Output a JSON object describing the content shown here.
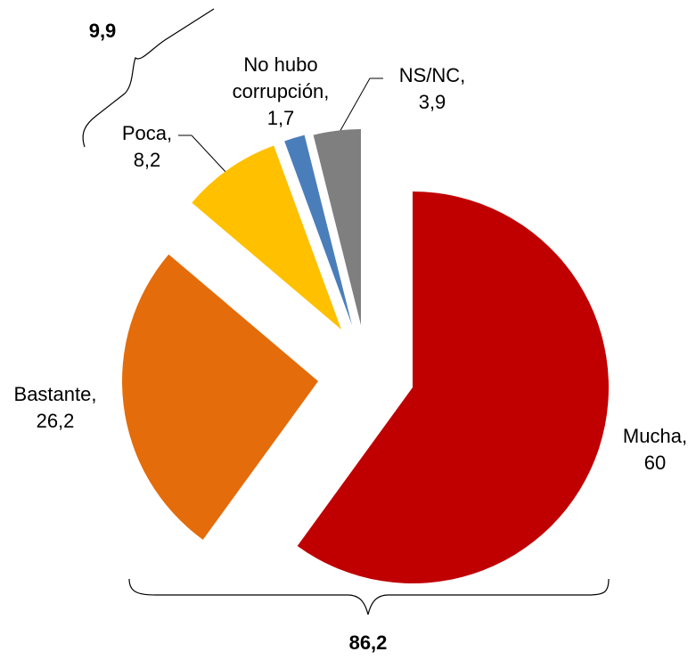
{
  "chart_data": {
    "type": "pie",
    "categories": [
      "Mucha,",
      "Bastante,",
      "Poca,",
      "No hubo corrupción,",
      "NS/NC,"
    ],
    "values": [
      60,
      26.2,
      8.2,
      1.7,
      3.9
    ],
    "value_labels": [
      "60",
      "26,2",
      "8,2",
      "1,7",
      "3,9"
    ],
    "colors": [
      "#c00000",
      "#e46c0a",
      "#ffc000",
      "#4a7ebb",
      "#7f7f7f"
    ],
    "annotations": [
      "9,9",
      "86,2"
    ]
  }
}
